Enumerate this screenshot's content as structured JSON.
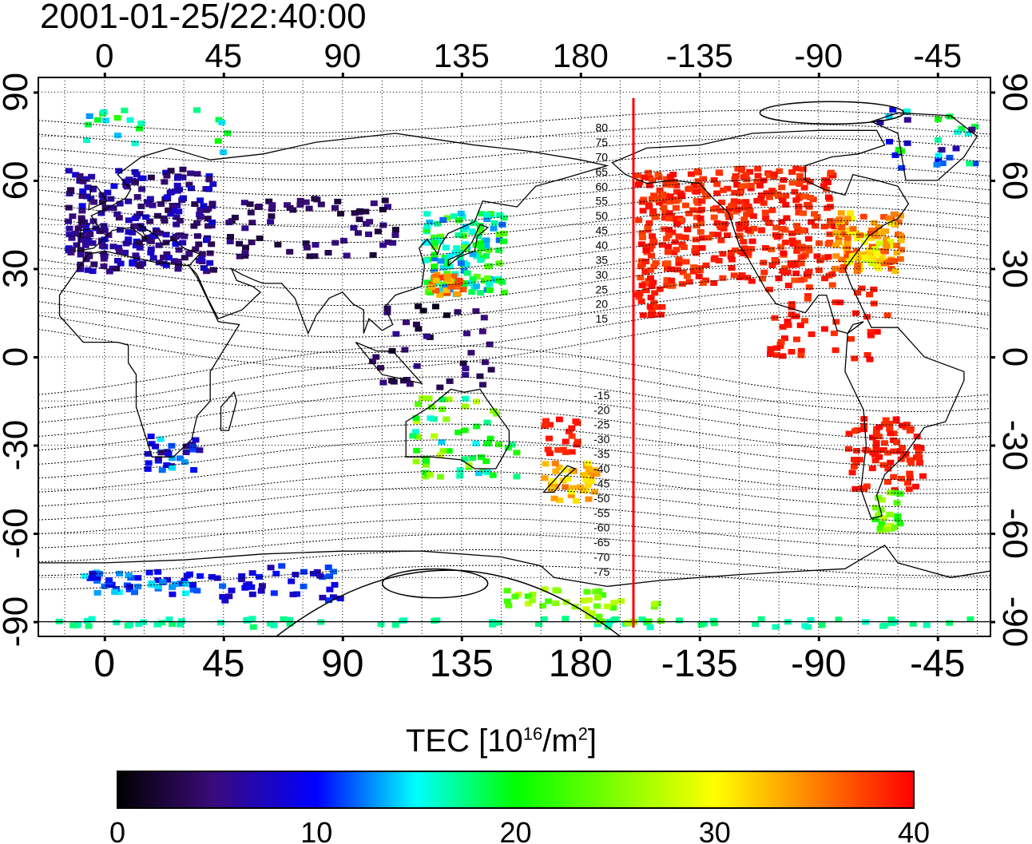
{
  "title": "2001-01-25/22:40:00",
  "lon_ticks": [
    "0",
    "45",
    "90",
    "135",
    "180",
    "-135",
    "-90",
    "-45"
  ],
  "lat_ticks_left": [
    "90",
    "60",
    "30",
    "0",
    "-30",
    "-60",
    "-90"
  ],
  "lat_ticks_right": [
    "90",
    "60",
    "30",
    "0",
    "-30",
    "-60",
    "-90"
  ],
  "contour_labels": [
    "80",
    "75",
    "70",
    "65",
    "60",
    "55",
    "50",
    "45",
    "40",
    "35",
    "30",
    "25",
    "20",
    "15",
    "-15",
    "-20",
    "-25",
    "-30",
    "-35",
    "-40",
    "-45",
    "-50",
    "-55",
    "-60",
    "-65",
    "-70",
    "-75"
  ],
  "colorbar": {
    "title_prefix": "TEC  [10",
    "title_exp1": "16",
    "title_mid": "/m",
    "title_exp2": "2",
    "title_suffix": "]",
    "ticks": [
      "0",
      "10",
      "20",
      "30",
      "40"
    ],
    "min": 0,
    "max": 40,
    "colors": [
      "#000000",
      "#4a0a9a",
      "#0000ff",
      "#00ffff",
      "#00ff00",
      "#ffff00",
      "#ff8000",
      "#ff0000"
    ]
  },
  "terminator_color": "#ff0000",
  "map_extent": {
    "lon_min": -25,
    "lon_max": 335,
    "lat_min": -95,
    "lat_max": 95,
    "terminator_lon": 200
  }
}
